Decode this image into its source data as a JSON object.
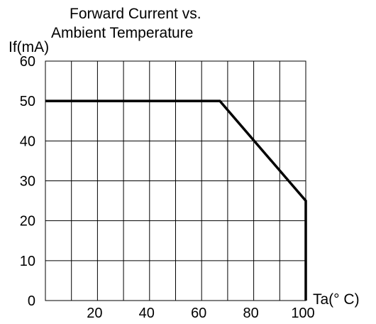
{
  "chart_data": {
    "type": "line",
    "title_lines": [
      "Forward Current  vs.",
      "Ambient Temperature"
    ],
    "xlabel": "Ta(° C)",
    "ylabel": "If(mA)",
    "xlim": [
      0,
      100
    ],
    "ylim": [
      0,
      60
    ],
    "x_ticks": [
      {
        "value": 20,
        "label": "20"
      },
      {
        "value": 40,
        "label": "40"
      },
      {
        "value": 60,
        "label": "60"
      },
      {
        "value": 80,
        "label": "80"
      },
      {
        "value": 100,
        "label": "100"
      }
    ],
    "y_ticks": [
      {
        "value": 0,
        "label": "0"
      },
      {
        "value": 10,
        "label": "10"
      },
      {
        "value": 20,
        "label": "20"
      },
      {
        "value": 30,
        "label": "30"
      },
      {
        "value": 40,
        "label": "40"
      },
      {
        "value": 50,
        "label": "50"
      },
      {
        "value": 60,
        "label": "60"
      }
    ],
    "grid": {
      "x_step": 10,
      "y_step": 10
    },
    "series": [
      {
        "points": [
          [
            0,
            50
          ],
          [
            67,
            50
          ],
          [
            100,
            25
          ],
          [
            100,
            0
          ]
        ]
      }
    ],
    "colors": {
      "line": "#000000",
      "grid": "#000000"
    }
  }
}
